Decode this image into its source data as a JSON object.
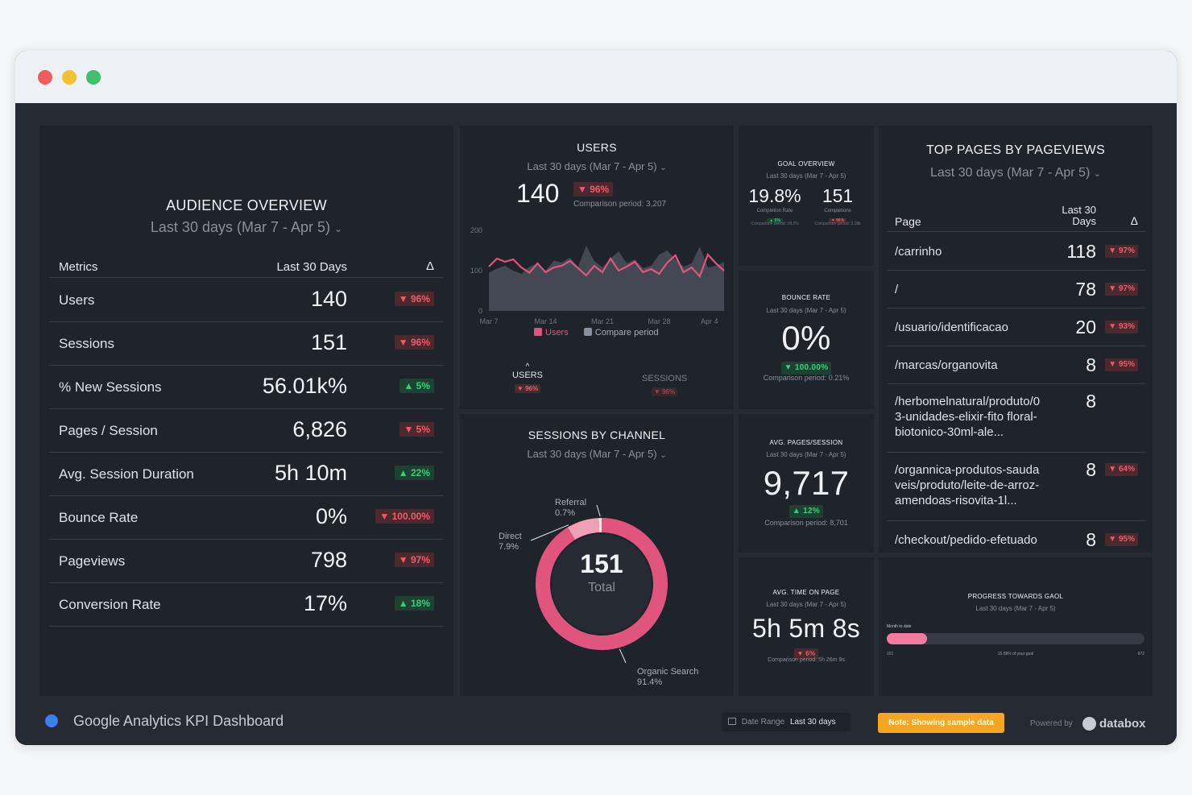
{
  "footer": {
    "dashboard_title": "Google Analytics KPI Dashboard",
    "date_range_label": "Date Range",
    "date_range_value": "Last 30 days",
    "note": "Note: Showing sample data",
    "powered_by": "Powered by",
    "brand": "databox"
  },
  "audience": {
    "title": "AUDIENCE OVERVIEW",
    "period": "Last 30 days (Mar 7 - Apr 5)",
    "col_metrics": "Metrics",
    "col_period": "Last 30 Days",
    "col_delta": "Δ",
    "rows": [
      {
        "name": "Users",
        "value": "140",
        "change": "▼ 96%"
      },
      {
        "name": "Sessions",
        "value": "151",
        "change": "▼ 96%"
      },
      {
        "name": "% New Sessions",
        "value": "56.01k%",
        "change": "▲ 5%"
      },
      {
        "name": "Pages / Session",
        "value": "6,826",
        "change": "▼ 5%"
      },
      {
        "name": "Avg. Session Duration",
        "value": "5h 10m",
        "change": "▲ 22%"
      },
      {
        "name": "Bounce Rate",
        "value": "0%",
        "change": "▼ 100.00%"
      },
      {
        "name": "Pageviews",
        "value": "798",
        "change": "▼ 97%"
      },
      {
        "name": "Conversion Rate",
        "value": "17%",
        "change": "▲ 18%"
      }
    ]
  },
  "users": {
    "title": "USERS",
    "period": "Last 30 days (Mar 7 - Apr 5)",
    "value": "140",
    "change": "▼ 96%",
    "comparison": "Comparison period: 3,207",
    "legend_users": "Users",
    "legend_compare": "Compare period",
    "switch_users": "USERS",
    "switch_users_change": "▼ 96%",
    "switch_sessions": "SESSIONS",
    "switch_sessions_change": "▼ 96%"
  },
  "goal": {
    "title": "GOAL OVERVIEW",
    "period": "Last 30 days (Mar 7 - Apr 5)",
    "rate_value": "19.8%",
    "rate_label": "Completion Rate",
    "rate_change": "▲ 5%",
    "rate_comparison": "Comparison period: 18.2%",
    "completions_value": "151",
    "completions_label": "Completions",
    "completions_change": "▼ 96%",
    "completions_comparison": "Comparison period: 3.18k"
  },
  "bounce": {
    "title": "BOUNCE RATE",
    "period": "Last 30 days (Mar 7 - Apr 5)",
    "value": "0%",
    "change": "▼ 100.00%",
    "comparison": "Comparison period: 0.21%"
  },
  "pages_session": {
    "title": "AVG. PAGES/SESSION",
    "period": "Last 30 days (Mar 7 - Apr 5)",
    "value": "9,717",
    "change": "▲ 12%",
    "comparison": "Comparison period: 8,701"
  },
  "time_on_page": {
    "title": "AVG. TIME ON PAGE",
    "period": "Last 30 days (Mar 7 - Apr 5)",
    "value": "5h 5m 8s",
    "change": "▼ 6%",
    "comparison": "Comparison period: 5h 26m 9s"
  },
  "channels": {
    "title": "SESSIONS BY CHANNEL",
    "period": "Last 30 days (Mar 7 - Apr 5)",
    "total_value": "151",
    "total_label": "Total"
  },
  "top_pages": {
    "title": "TOP PAGES BY PAGEVIEWS",
    "period": "Last 30 days (Mar 7 - Apr 5)",
    "col_page": "Page",
    "col_period": "Last 30 Days",
    "col_delta": "Δ",
    "rows": [
      {
        "page": "/carrinho",
        "value": "118",
        "change": "▼ 97%"
      },
      {
        "page": "/",
        "value": "78",
        "change": "▼ 97%"
      },
      {
        "page": "/usuario/identificacao",
        "value": "20",
        "change": "▼ 93%"
      },
      {
        "page": "/marcas/organovita",
        "value": "8",
        "change": "▼ 95%"
      },
      {
        "page": "/herbomelnatural/produto/03-unidades-elixir-fito floral-biotonico-30ml-ale...",
        "value": "8",
        "change": ""
      },
      {
        "page": "/organnica-produtos-saudaveis/produto/leite-de-arroz-amendoas-risovita-1l...",
        "value": "8",
        "change": "▼ 64%"
      },
      {
        "page": "/checkout/pedido-efetuado",
        "value": "8",
        "change": "▼ 95%"
      }
    ]
  },
  "progress": {
    "title": "PROGRESS TOWARDS GAOL",
    "period": "Last 30 days (Mar 7 - Apr 5)",
    "bar_label": "Month to date",
    "start": "151",
    "mid": "15.58% of your goal",
    "goal": "972",
    "fraction": 0.1558
  },
  "chart_data": [
    {
      "type": "area",
      "x": [
        "Mar 7",
        "Mar 8",
        "Mar 9",
        "Mar 10",
        "Mar 11",
        "Mar 12",
        "Mar 13",
        "Mar 14",
        "Mar 15",
        "Mar 16",
        "Mar 17",
        "Mar 18",
        "Mar 19",
        "Mar 20",
        "Mar 21",
        "Mar 22",
        "Mar 23",
        "Mar 24",
        "Mar 25",
        "Mar 26",
        "Mar 27",
        "Mar 28",
        "Mar 29",
        "Mar 30",
        "Mar 31",
        "Apr 1",
        "Apr 2",
        "Apr 3",
        "Apr 4",
        "Apr 5"
      ],
      "xticks": [
        "Mar 7",
        "Mar 14",
        "Mar 21",
        "Mar 28",
        "Apr 4"
      ],
      "yticks": [
        "0",
        "100",
        "200"
      ],
      "ylim": [
        0,
        200
      ],
      "series": [
        {
          "name": "Users",
          "color": "#e0557d",
          "values": [
            110,
            130,
            122,
            128,
            108,
            95,
            118,
            96,
            108,
            112,
            124,
            106,
            88,
            112,
            96,
            130,
            100,
            110,
            122,
            96,
            104,
            92,
            120,
            138,
            96,
            108,
            86,
            140,
            118,
            100
          ]
        },
        {
          "name": "Compare period",
          "color": "#4a4f59",
          "values": [
            95,
            105,
            112,
            100,
            92,
            110,
            118,
            100,
            125,
            120,
            132,
            110,
            162,
            124,
            108,
            130,
            148,
            118,
            128,
            106,
            112,
            140,
            150,
            128,
            110,
            118,
            160,
            108,
            112,
            122
          ]
        }
      ]
    },
    {
      "type": "pie",
      "categories": [
        "Organic Search",
        "Direct",
        "Referral"
      ],
      "values": [
        91.4,
        7.9,
        0.7
      ],
      "labels": [
        "91.4%",
        "7.9%",
        "0.7%"
      ],
      "colors": [
        "#e0557d",
        "#f0a0b6",
        "#fbe0e8"
      ]
    }
  ]
}
